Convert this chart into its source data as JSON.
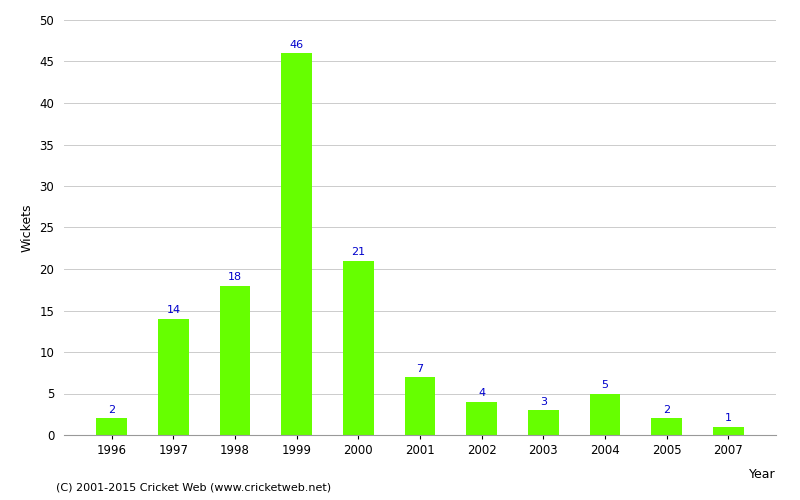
{
  "years": [
    "1996",
    "1997",
    "1998",
    "1999",
    "2000",
    "2001",
    "2002",
    "2003",
    "2004",
    "2005",
    "2007"
  ],
  "values": [
    2,
    14,
    18,
    46,
    21,
    7,
    4,
    3,
    5,
    2,
    1
  ],
  "bar_color": "#66ff00",
  "label_color": "#0000cc",
  "xlabel": "Year",
  "ylabel": "Wickets",
  "ylim": [
    0,
    50
  ],
  "yticks": [
    0,
    5,
    10,
    15,
    20,
    25,
    30,
    35,
    40,
    45,
    50
  ],
  "background_color": "#ffffff",
  "footnote": "(C) 2001-2015 Cricket Web (www.cricketweb.net)",
  "label_fontsize": 8,
  "axis_label_fontsize": 9,
  "tick_fontsize": 8.5,
  "footnote_fontsize": 8,
  "grid_color": "#cccccc"
}
